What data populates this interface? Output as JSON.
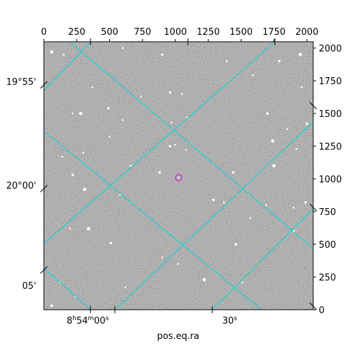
{
  "chart_data": {
    "type": "scatter",
    "title": "",
    "xlabel": "pos.eq.ra",
    "ylabel": "",
    "pixel_axes": {
      "xlim": [
        0,
        2048
      ],
      "ylim": [
        0,
        2048
      ],
      "x_ticks": [
        0,
        250,
        500,
        750,
        1000,
        1250,
        1500,
        1750,
        2000
      ],
      "y_ticks": [
        0,
        250,
        500,
        750,
        1000,
        1250,
        1500,
        1750,
        2000
      ],
      "x_tick_labels": [
        "0",
        "250",
        "500",
        "750",
        "1000",
        "1250",
        "1500",
        "1750",
        "2000"
      ],
      "y_tick_labels": [
        "0",
        "250",
        "500",
        "750",
        "1000",
        "1250",
        "1500",
        "1750",
        "2000"
      ]
    },
    "world_axes": {
      "ra_tick_labels": [
        {
          "hours": "8",
          "h": "h",
          "minutes": "54",
          "m": "m",
          "seconds": "00",
          "s": "s"
        },
        {
          "hours": "",
          "h": "",
          "minutes": "",
          "m": "",
          "seconds": "30",
          "s": "s"
        }
      ],
      "dec_tick_labels": [
        "19°55'",
        "20°00'",
        "05'"
      ],
      "grid": true,
      "grid_color": "#00d8d8"
    },
    "image": {
      "colormap": "gray",
      "background_noise": true
    },
    "marker": {
      "x": 1025,
      "y": 1010,
      "shape": "circle",
      "color": "#cc33cc"
    },
    "stars": [
      [
        60,
        1970
      ],
      [
        150,
        1950
      ],
      [
        600,
        2000
      ],
      [
        900,
        1950
      ],
      [
        1390,
        1900
      ],
      [
        1590,
        1790
      ],
      [
        1790,
        1900
      ],
      [
        1950,
        1950
      ],
      [
        370,
        1700
      ],
      [
        960,
        1660
      ],
      [
        1050,
        1650
      ],
      [
        740,
        1630
      ],
      [
        490,
        1540
      ],
      [
        220,
        1500
      ],
      [
        280,
        1500
      ],
      [
        1700,
        1500
      ],
      [
        1090,
        1470
      ],
      [
        970,
        1430
      ],
      [
        2000,
        1420
      ],
      [
        1960,
        1700
      ],
      [
        500,
        1320
      ],
      [
        1740,
        1290
      ],
      [
        1920,
        1230
      ],
      [
        1850,
        1380
      ],
      [
        960,
        1250
      ],
      [
        1080,
        1220
      ],
      [
        140,
        1170
      ],
      [
        220,
        1030
      ],
      [
        310,
        920
      ],
      [
        580,
        880
      ],
      [
        1290,
        840
      ],
      [
        1370,
        820
      ],
      [
        1690,
        800
      ],
      [
        1990,
        820
      ],
      [
        200,
        620
      ],
      [
        340,
        620
      ],
      [
        510,
        510
      ],
      [
        1570,
        700
      ],
      [
        1900,
        780
      ],
      [
        1460,
        500
      ],
      [
        900,
        400
      ],
      [
        1020,
        350
      ],
      [
        1220,
        230
      ],
      [
        1510,
        210
      ],
      [
        620,
        170
      ],
      [
        60,
        30
      ],
      [
        120,
        210
      ],
      [
        240,
        100
      ],
      [
        1900,
        600
      ],
      [
        1750,
        1100
      ],
      [
        1000,
        1260
      ],
      [
        1440,
        1050
      ],
      [
        600,
        1450
      ],
      [
        660,
        1100
      ],
      [
        880,
        1050
      ],
      [
        300,
        1200
      ]
    ]
  }
}
